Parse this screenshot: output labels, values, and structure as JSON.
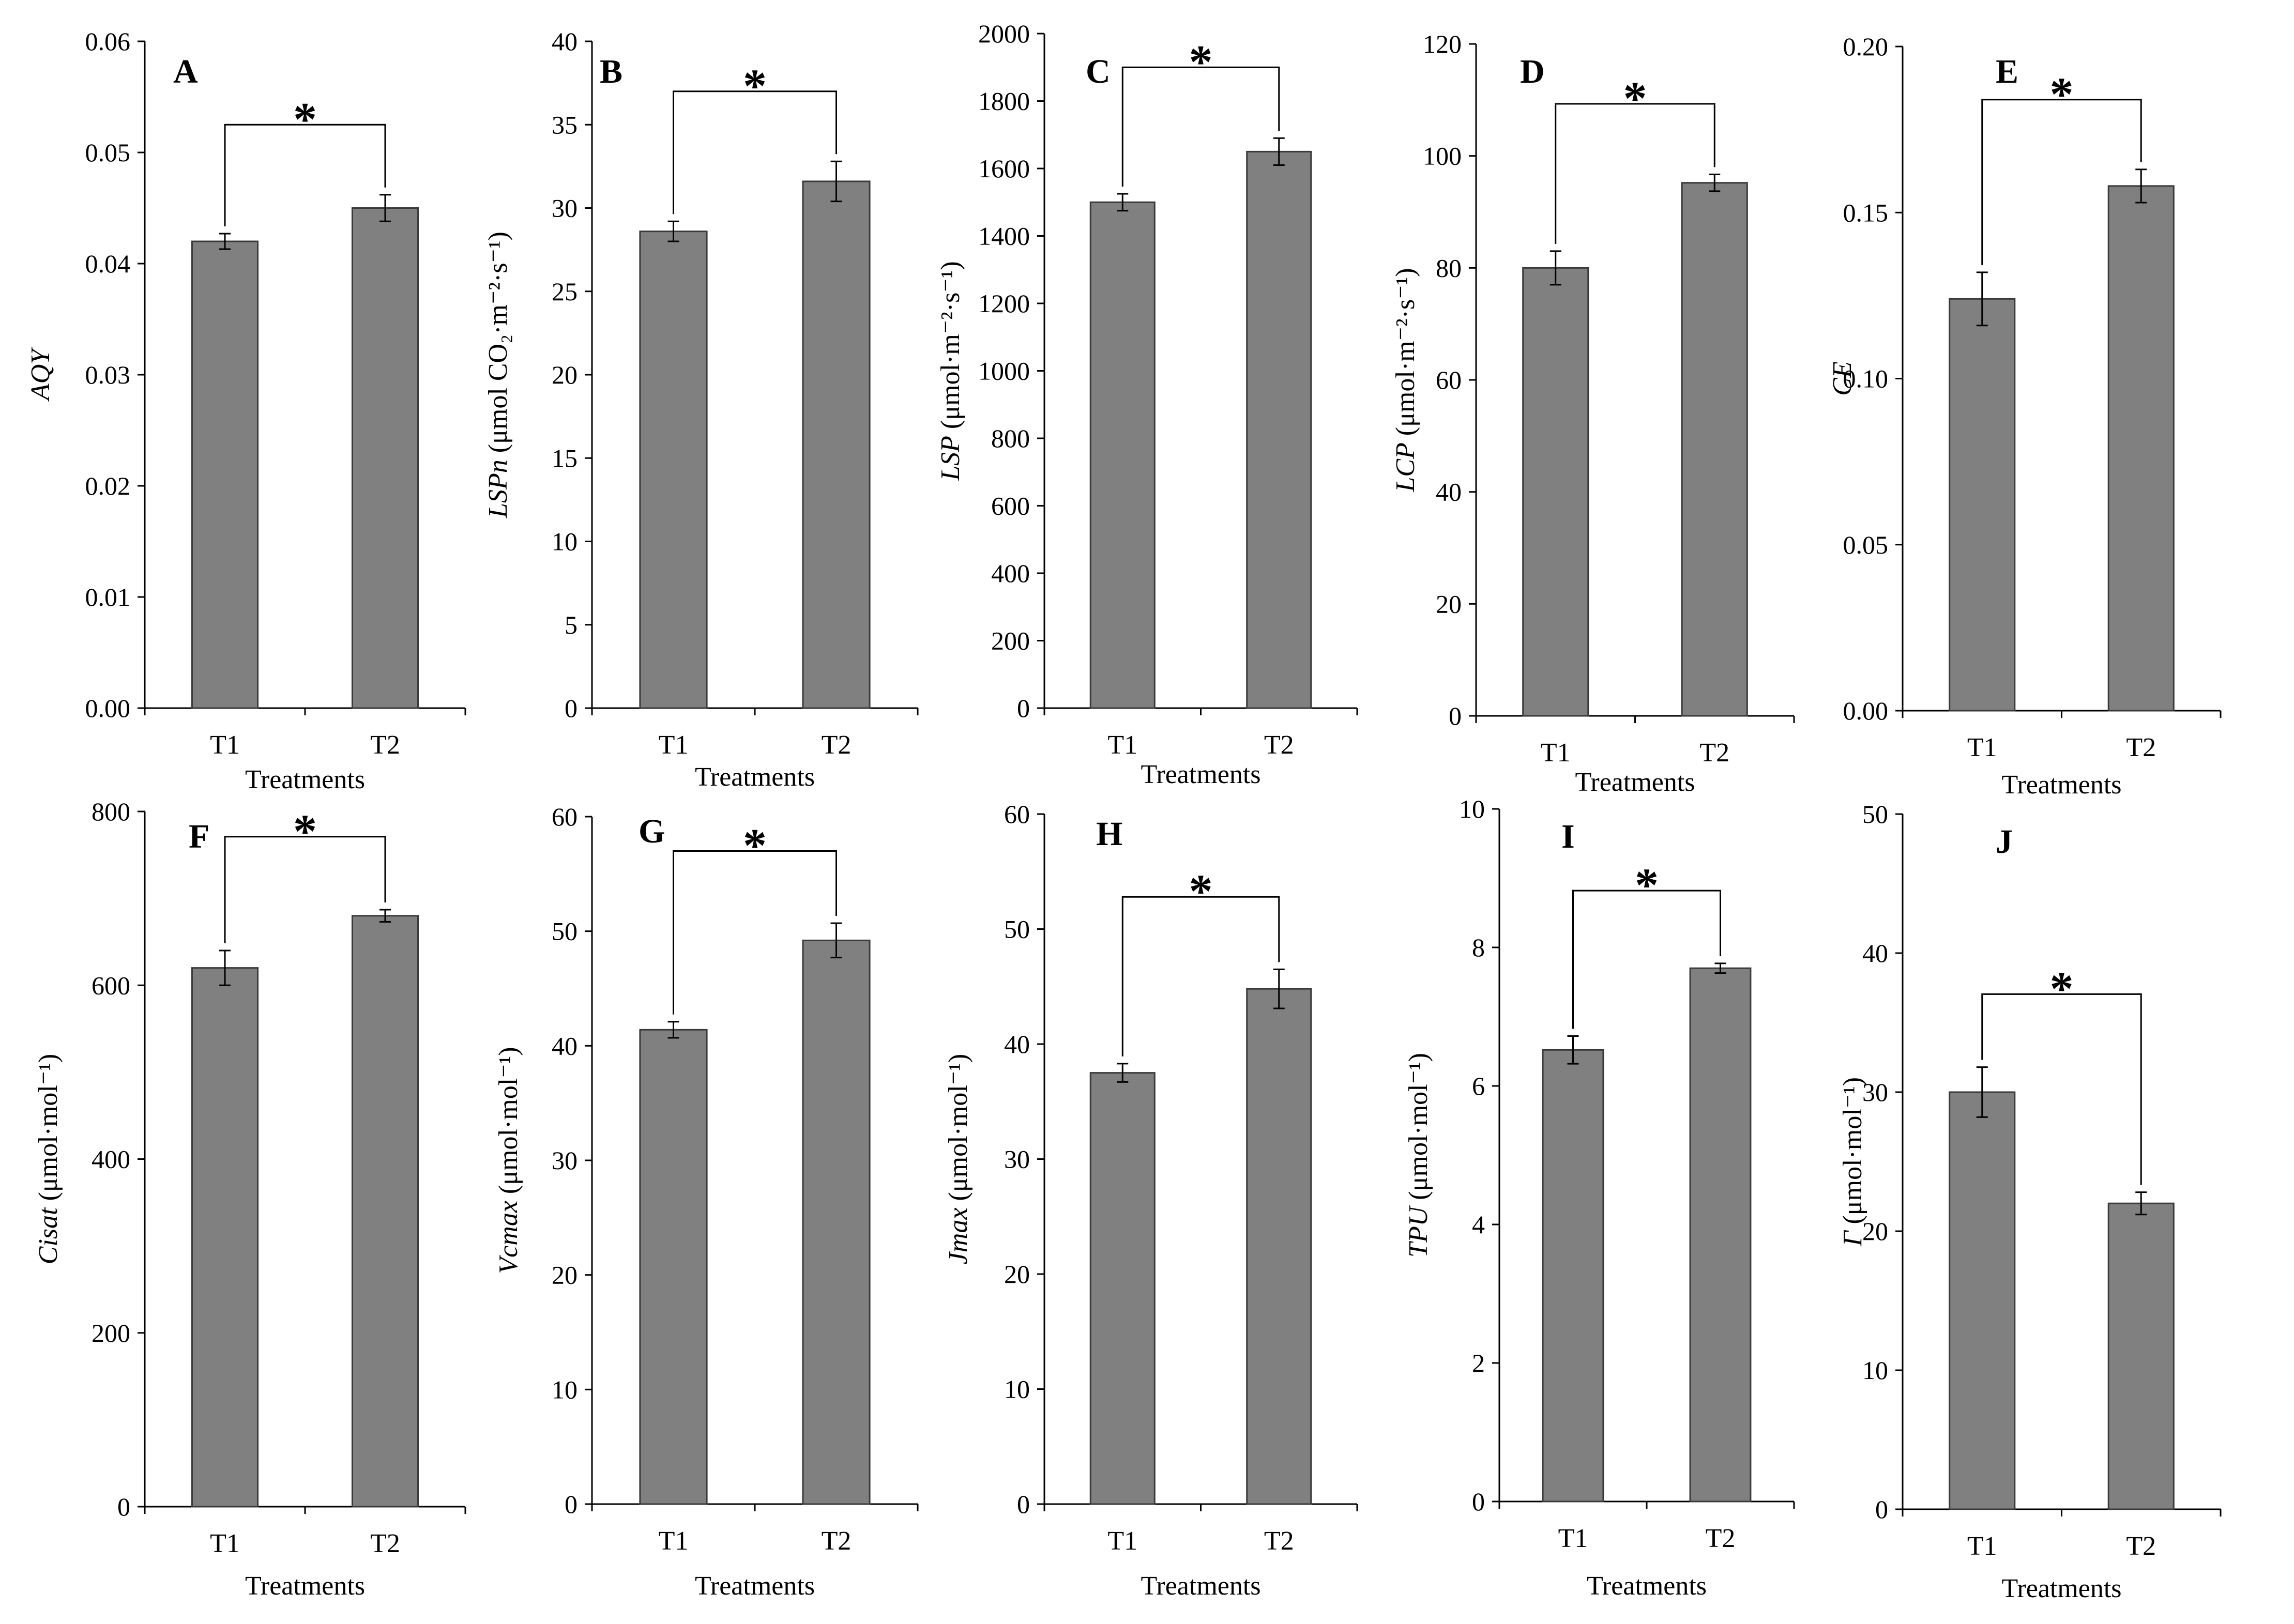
{
  "colors": {
    "bar": "#808080",
    "bar_edge": "#3a3a3a",
    "axis": "#000000"
  },
  "chart_data": [
    {
      "type": "bar",
      "letter": "A",
      "ylabel": "AQY",
      "ylabel_unit": "",
      "xlabel": "Treatments",
      "categories": [
        "T1",
        "T2"
      ],
      "values": [
        0.042,
        0.045
      ],
      "errors": [
        0.0007,
        0.0012
      ],
      "ylim": [
        0,
        0.06
      ],
      "yticks": [
        0,
        0.01,
        0.02,
        0.03,
        0.04,
        0.05,
        0.06
      ],
      "ytick_labels": [
        "0.00",
        "0.01",
        "0.02",
        "0.03",
        "0.04",
        "0.05",
        "0.06"
      ],
      "significance": "*"
    },
    {
      "type": "bar",
      "letter": "B",
      "ylabel": "LSPn",
      "ylabel_unit": "(μmol CO₂·m⁻²·s⁻¹)",
      "xlabel": "Treatments",
      "categories": [
        "T1",
        "T2"
      ],
      "values": [
        28.6,
        31.6
      ],
      "errors": [
        0.6,
        1.2
      ],
      "ylim": [
        0,
        40
      ],
      "yticks": [
        0,
        5,
        10,
        15,
        20,
        25,
        30,
        35,
        40
      ],
      "ytick_labels": [
        "0",
        "5",
        "10",
        "15",
        "20",
        "25",
        "30",
        "35",
        "40"
      ],
      "significance": "*"
    },
    {
      "type": "bar",
      "letter": "C",
      "ylabel": "LSP",
      "ylabel_unit": "(μmol·m⁻²·s⁻¹)",
      "xlabel": "Treatments",
      "categories": [
        "T1",
        "T2"
      ],
      "values": [
        1500,
        1650
      ],
      "errors": [
        25,
        40
      ],
      "ylim": [
        0,
        2000
      ],
      "yticks": [
        0,
        200,
        400,
        600,
        800,
        1000,
        1200,
        1400,
        1600,
        1800,
        2000
      ],
      "ytick_labels": [
        "0",
        "200",
        "400",
        "600",
        "800",
        "1000",
        "1200",
        "1400",
        "1600",
        "1800",
        "2000"
      ],
      "significance": "*"
    },
    {
      "type": "bar",
      "letter": "D",
      "ylabel": "LCP",
      "ylabel_unit": "(μmol·m⁻²·s⁻¹)",
      "xlabel": "Treatments",
      "categories": [
        "T1",
        "T2"
      ],
      "values": [
        80,
        95.2
      ],
      "errors": [
        3,
        1.5
      ],
      "ylim": [
        0,
        120
      ],
      "yticks": [
        0,
        20,
        40,
        60,
        80,
        100,
        120
      ],
      "ytick_labels": [
        "0",
        "20",
        "40",
        "60",
        "80",
        "100",
        "120"
      ],
      "significance": "*"
    },
    {
      "type": "bar",
      "letter": "E",
      "ylabel": "CE",
      "ylabel_unit": "",
      "xlabel": "Treatments",
      "categories": [
        "T1",
        "T2"
      ],
      "values": [
        0.124,
        0.158
      ],
      "errors": [
        0.008,
        0.005
      ],
      "ylim": [
        0,
        0.2
      ],
      "yticks": [
        0,
        0.05,
        0.1,
        0.15,
        0.2
      ],
      "ytick_labels": [
        "0.00",
        "0.05",
        "0.10",
        "0.15",
        "0.20"
      ],
      "significance": "*"
    },
    {
      "type": "bar",
      "letter": "F",
      "ylabel": "Cisat",
      "ylabel_unit": "(μmol·mol⁻¹)",
      "xlabel": "Treatments",
      "categories": [
        "T1",
        "T2"
      ],
      "values": [
        620,
        680
      ],
      "errors": [
        20,
        7
      ],
      "ylim": [
        0,
        800
      ],
      "yticks": [
        0,
        200,
        400,
        600,
        800
      ],
      "ytick_labels": [
        "0",
        "200",
        "400",
        "600",
        "800"
      ],
      "significance": "*"
    },
    {
      "type": "bar",
      "letter": "G",
      "ylabel": "Vcmax",
      "ylabel_unit": "(μmol·mol⁻¹)",
      "xlabel": "Treatments",
      "categories": [
        "T1",
        "T2"
      ],
      "values": [
        41.4,
        49.2
      ],
      "errors": [
        0.7,
        1.5
      ],
      "ylim": [
        0,
        60
      ],
      "yticks": [
        0,
        10,
        20,
        30,
        40,
        50,
        60
      ],
      "ytick_labels": [
        "0",
        "10",
        "20",
        "30",
        "40",
        "50",
        "60"
      ],
      "significance": "*"
    },
    {
      "type": "bar",
      "letter": "H",
      "ylabel": "Jmax",
      "ylabel_unit": "(μmol·mol⁻¹)",
      "xlabel": "Treatments",
      "categories": [
        "T1",
        "T2"
      ],
      "values": [
        37.5,
        44.8
      ],
      "errors": [
        0.8,
        1.7
      ],
      "ylim": [
        0,
        60
      ],
      "yticks": [
        0,
        10,
        20,
        30,
        40,
        50,
        60
      ],
      "ytick_labels": [
        "0",
        "10",
        "20",
        "30",
        "40",
        "50",
        "60"
      ],
      "significance": "*"
    },
    {
      "type": "bar",
      "letter": "I",
      "ylabel": "TPU",
      "ylabel_unit": "(μmol·mol⁻¹)",
      "xlabel": "Treatments",
      "categories": [
        "T1",
        "T2"
      ],
      "values": [
        6.52,
        7.7
      ],
      "errors": [
        0.2,
        0.07
      ],
      "ylim": [
        0,
        10
      ],
      "yticks": [
        0,
        2,
        4,
        6,
        8,
        10
      ],
      "ytick_labels": [
        "0",
        "2",
        "4",
        "6",
        "8",
        "10"
      ],
      "significance": "*"
    },
    {
      "type": "bar",
      "letter": "J",
      "ylabel": "Γ",
      "ylabel_unit": "(μmol·mol⁻¹)",
      "xlabel": "Treatments",
      "categories": [
        "T1",
        "T2"
      ],
      "values": [
        30,
        22
      ],
      "errors": [
        1.8,
        0.8
      ],
      "ylim": [
        0,
        50
      ],
      "yticks": [
        0,
        10,
        20,
        30,
        40,
        50
      ],
      "ytick_labels": [
        "0",
        "10",
        "20",
        "30",
        "40",
        "50"
      ],
      "significance": "*"
    }
  ]
}
